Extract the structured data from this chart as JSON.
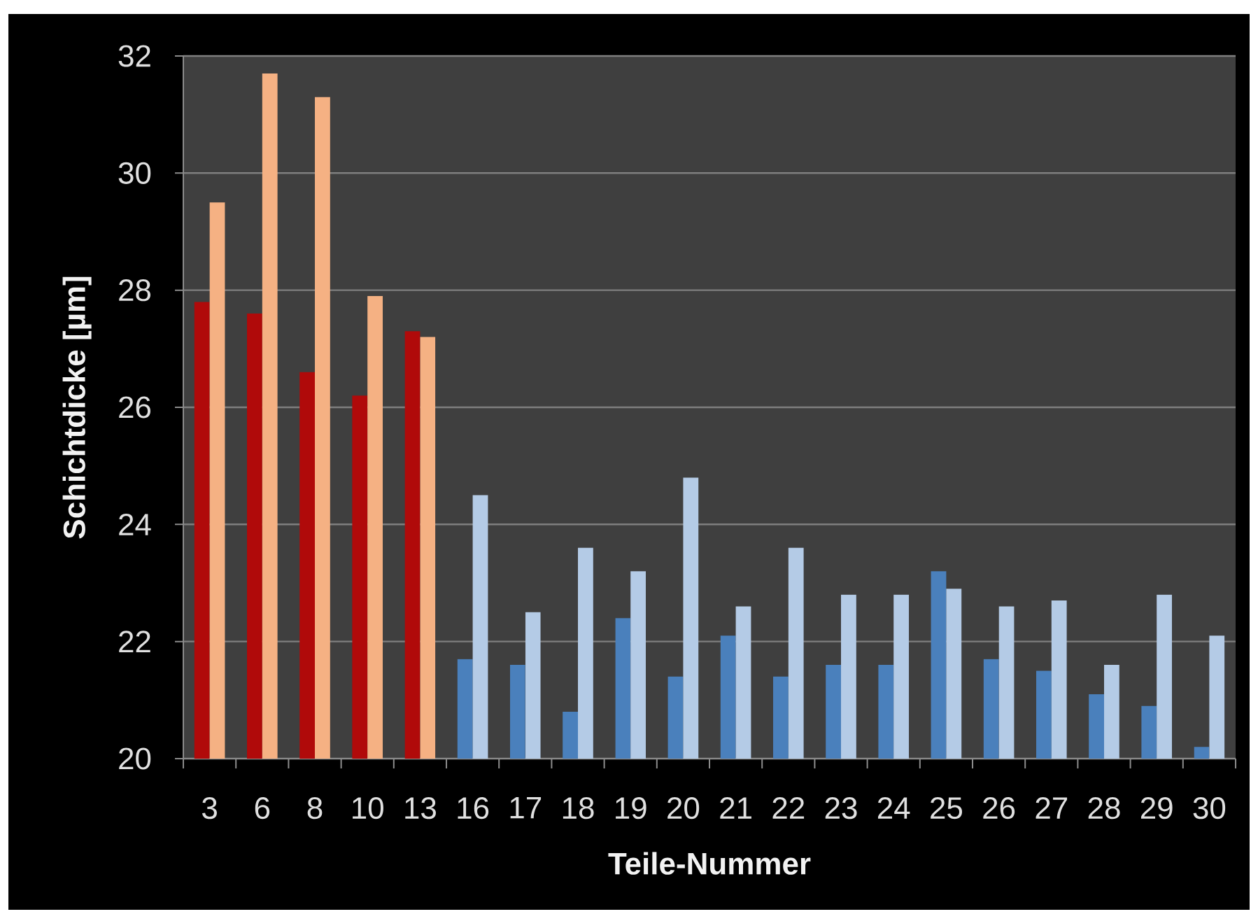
{
  "chart_data": {
    "type": "bar",
    "xlabel": "Teile-Nummer",
    "ylabel": "Schichtdicke [µm]",
    "categories": [
      "3",
      "6",
      "8",
      "10",
      "13",
      "16",
      "17",
      "18",
      "19",
      "20",
      "21",
      "22",
      "23",
      "24",
      "25",
      "26",
      "27",
      "28",
      "29",
      "30"
    ],
    "series": [
      {
        "colors": [
          "#b00a0a",
          "#b00a0a",
          "#b00a0a",
          "#b00a0a",
          "#b00a0a",
          "#4a80bc",
          "#4a80bc",
          "#4a80bc",
          "#4a80bc",
          "#4a80bc",
          "#4a80bc",
          "#4a80bc",
          "#4a80bc",
          "#4a80bc",
          "#4a80bc",
          "#4a80bc",
          "#4a80bc",
          "#4a80bc",
          "#4a80bc",
          "#4a80bc"
        ],
        "values": [
          27.8,
          27.6,
          26.6,
          26.2,
          27.3,
          21.7,
          21.6,
          20.8,
          22.4,
          21.4,
          22.1,
          21.4,
          21.6,
          21.6,
          23.2,
          21.7,
          21.5,
          21.1,
          20.9,
          20.2
        ]
      },
      {
        "colors": [
          "#f5b183",
          "#f5b183",
          "#f5b183",
          "#f5b183",
          "#f5b183",
          "#b4cbe6",
          "#b4cbe6",
          "#b4cbe6",
          "#b4cbe6",
          "#b4cbe6",
          "#b4cbe6",
          "#b4cbe6",
          "#b4cbe6",
          "#b4cbe6",
          "#b4cbe6",
          "#b4cbe6",
          "#b4cbe6",
          "#b4cbe6",
          "#b4cbe6",
          "#b4cbe6"
        ],
        "values": [
          29.5,
          31.7,
          31.3,
          27.9,
          27.2,
          24.5,
          22.5,
          23.6,
          23.2,
          24.8,
          22.6,
          23.6,
          22.8,
          22.8,
          22.9,
          22.6,
          22.7,
          21.6,
          22.8,
          22.1
        ]
      }
    ],
    "ylim": [
      20,
      32
    ],
    "yticks": [
      20,
      22,
      24,
      26,
      28,
      30,
      32
    ],
    "grid": "y"
  }
}
